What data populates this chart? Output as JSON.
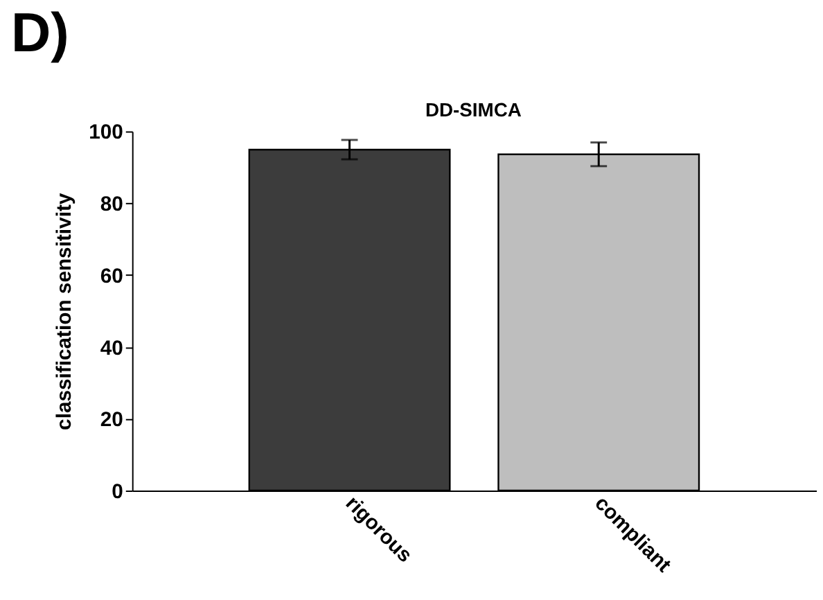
{
  "chart_data": {
    "type": "bar",
    "title": "DD-SIMCA",
    "ylabel": "classification sensitivity",
    "annotations": [
      "D)"
    ],
    "categories": [
      "rigorous",
      "compliant"
    ],
    "values": [
      94.9,
      93.6
    ],
    "colors": [
      "#3c3c3c",
      "#bebebe"
    ],
    "errors": [
      2.7,
      3.3
    ],
    "ylim": [
      0,
      100
    ],
    "yticks": [
      0,
      20,
      40,
      60,
      80,
      100
    ],
    "grid": false
  }
}
